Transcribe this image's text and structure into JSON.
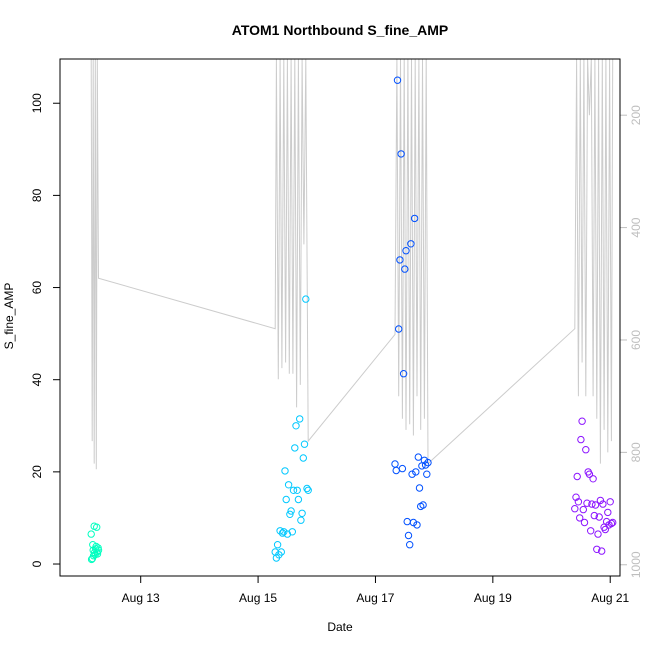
{
  "chart_data": {
    "type": "scatter",
    "title": "ATOM1 Northbound S_fine_AMP",
    "xlabel": "Date",
    "ylabel": "S_fine_AMP",
    "xlim": [
      "2023-08-11T15:00",
      "2023-08-21T04:00"
    ],
    "ylim": [
      -2.6,
      109.6
    ],
    "x_ticks": [
      {
        "x": "2023-08-13T00:00",
        "label": "Aug 13"
      },
      {
        "x": "2023-08-15T00:00",
        "label": "Aug 15"
      },
      {
        "x": "2023-08-17T00:00",
        "label": "Aug 17"
      },
      {
        "x": "2023-08-19T00:00",
        "label": "Aug 19"
      },
      {
        "x": "2023-08-21T00:00",
        "label": "Aug 21"
      }
    ],
    "y_ticks": [
      0,
      20,
      40,
      60,
      80,
      100
    ],
    "secondary_axis": {
      "side": "right",
      "reversed": true,
      "ylim": [
        1020,
        100
      ],
      "ticks": [
        200,
        400,
        600,
        800,
        1000
      ],
      "color": "#bebebe"
    },
    "grid": false,
    "legend": "none",
    "series": [
      {
        "color": "#00ffc0",
        "x": [
          "2023-08-12T03:45",
          "2023-08-12T03:55",
          "2023-08-12T04:15",
          "2023-08-12T04:25",
          "2023-08-12T04:35",
          "2023-08-12T04:45",
          "2023-08-12T05:00",
          "2023-08-12T05:10",
          "2023-08-12T05:20",
          "2023-08-12T05:35",
          "2023-08-12T05:45",
          "2023-08-12T06:00",
          "2023-08-12T06:10",
          "2023-08-12T06:20",
          "2023-08-12T06:35",
          "2023-08-12T06:45"
        ],
        "y": [
          6.5,
          1.0,
          1.2,
          4.2,
          3.0,
          1.8,
          8.2,
          2.5,
          2.0,
          3.3,
          3.8,
          8.0,
          2.6,
          2.2,
          3.5,
          3.0
        ]
      },
      {
        "color": "#00c8ff",
        "x": [
          "2023-08-15T07:00",
          "2023-08-15T07:30",
          "2023-08-15T08:00",
          "2023-08-15T08:30",
          "2023-08-15T09:00",
          "2023-08-15T09:30",
          "2023-08-15T10:00",
          "2023-08-15T10:30",
          "2023-08-15T11:00",
          "2023-08-15T11:30",
          "2023-08-15T12:00",
          "2023-08-15T12:30",
          "2023-08-15T13:00",
          "2023-08-15T13:30",
          "2023-08-15T14:00",
          "2023-08-15T14:30",
          "2023-08-15T15:00",
          "2023-08-15T15:30",
          "2023-08-15T16:00",
          "2023-08-15T16:30",
          "2023-08-15T17:00",
          "2023-08-15T17:30",
          "2023-08-15T18:00",
          "2023-08-15T18:30",
          "2023-08-15T19:00",
          "2023-08-15T19:30",
          "2023-08-15T20:00",
          "2023-08-15T20:30"
        ],
        "y": [
          2.6,
          1.3,
          4.2,
          2.0,
          7.2,
          2.6,
          6.7,
          7.0,
          20.2,
          14.0,
          6.5,
          17.2,
          10.8,
          11.5,
          7.0,
          16.0,
          25.2,
          30.0,
          16.0,
          14.0,
          31.5,
          9.5,
          11.0,
          23.0,
          26.0,
          57.5,
          16.4,
          16.0
        ]
      },
      {
        "color": "#0050ff",
        "x": [
          "2023-08-17T08:00",
          "2023-08-17T08:30",
          "2023-08-17T09:00",
          "2023-08-17T09:30",
          "2023-08-17T10:00",
          "2023-08-17T10:30",
          "2023-08-17T11:00",
          "2023-08-17T11:30",
          "2023-08-17T12:00",
          "2023-08-17T12:30",
          "2023-08-17T13:00",
          "2023-08-17T13:30",
          "2023-08-17T14:00",
          "2023-08-17T14:30",
          "2023-08-17T15:00",
          "2023-08-17T15:30",
          "2023-08-17T16:00",
          "2023-08-17T16:30",
          "2023-08-17T17:00",
          "2023-08-17T17:30",
          "2023-08-17T18:00",
          "2023-08-17T18:30",
          "2023-08-17T19:00",
          "2023-08-17T19:30",
          "2023-08-17T20:00",
          "2023-08-17T20:30",
          "2023-08-17T21:00",
          "2023-08-17T21:30"
        ],
        "y": [
          21.7,
          20.3,
          105.0,
          51.0,
          66.0,
          89.0,
          20.7,
          41.3,
          64.0,
          68.0,
          9.2,
          6.2,
          4.2,
          69.5,
          19.5,
          9.0,
          75.0,
          20.0,
          8.5,
          23.2,
          16.5,
          12.5,
          21.3,
          12.8,
          22.5,
          21.5,
          19.5,
          22.0
        ]
      },
      {
        "color": "#8c14ff",
        "x": [
          "2023-08-20T09:30",
          "2023-08-20T10:00",
          "2023-08-20T10:30",
          "2023-08-20T11:00",
          "2023-08-20T11:30",
          "2023-08-20T12:00",
          "2023-08-20T12:30",
          "2023-08-20T13:00",
          "2023-08-20T13:30",
          "2023-08-20T14:00",
          "2023-08-20T14:30",
          "2023-08-20T15:00",
          "2023-08-20T15:30",
          "2023-08-20T16:00",
          "2023-08-20T16:30",
          "2023-08-20T17:00",
          "2023-08-20T17:30",
          "2023-08-20T18:00",
          "2023-08-20T18:30",
          "2023-08-20T19:00",
          "2023-08-20T19:30",
          "2023-08-20T20:00",
          "2023-08-20T20:30",
          "2023-08-20T21:00",
          "2023-08-20T21:30",
          "2023-08-20T22:00",
          "2023-08-20T22:30",
          "2023-08-20T23:00",
          "2023-08-20T23:30",
          "2023-08-21T00:00",
          "2023-08-21T00:30",
          "2023-08-21T01:00"
        ],
        "y": [
          12.0,
          14.5,
          19.0,
          13.5,
          10.0,
          27.0,
          31.0,
          11.8,
          9.0,
          24.8,
          13.2,
          20.0,
          19.5,
          7.2,
          13.0,
          18.5,
          10.5,
          12.8,
          3.2,
          6.5,
          10.2,
          13.8,
          2.8,
          13.0,
          8.0,
          7.5,
          9.2,
          11.2,
          8.5,
          13.5,
          8.8,
          9.0
        ]
      }
    ],
    "depth_trace": {
      "color": "#cccccc",
      "x": [
        "2023-08-12T03:45",
        "2023-08-12T04:10",
        "2023-08-12T04:35",
        "2023-08-12T05:00",
        "2023-08-12T05:25",
        "2023-08-12T05:50",
        "2023-08-12T06:15",
        "2023-08-12T06:45",
        "2023-08-15T07:00",
        "2023-08-15T07:30",
        "2023-08-15T08:15",
        "2023-08-15T09:00",
        "2023-08-15T09:45",
        "2023-08-15T10:30",
        "2023-08-15T11:15",
        "2023-08-15T12:00",
        "2023-08-15T12:45",
        "2023-08-15T13:30",
        "2023-08-15T14:15",
        "2023-08-15T15:00",
        "2023-08-15T15:45",
        "2023-08-15T16:30",
        "2023-08-15T17:15",
        "2023-08-15T18:00",
        "2023-08-15T18:45",
        "2023-08-15T19:30",
        "2023-08-15T20:30",
        "2023-08-17T08:00",
        "2023-08-17T08:45",
        "2023-08-17T09:30",
        "2023-08-17T10:15",
        "2023-08-17T11:00",
        "2023-08-17T11:45",
        "2023-08-17T12:30",
        "2023-08-17T13:15",
        "2023-08-17T14:00",
        "2023-08-17T14:45",
        "2023-08-17T15:30",
        "2023-08-17T16:15",
        "2023-08-17T17:00",
        "2023-08-17T17:45",
        "2023-08-17T18:30",
        "2023-08-17T19:15",
        "2023-08-17T20:00",
        "2023-08-17T20:45",
        "2023-08-17T21:30",
        "2023-08-20T09:30",
        "2023-08-20T10:15",
        "2023-08-20T11:00",
        "2023-08-20T11:45",
        "2023-08-20T12:30",
        "2023-08-20T13:15",
        "2023-08-20T14:00",
        "2023-08-20T14:45",
        "2023-08-20T15:30",
        "2023-08-20T16:15",
        "2023-08-20T17:00",
        "2023-08-20T17:45",
        "2023-08-20T18:30",
        "2023-08-20T19:15",
        "2023-08-20T20:00",
        "2023-08-20T20:45",
        "2023-08-20T21:30",
        "2023-08-20T22:15",
        "2023-08-20T23:00",
        "2023-08-20T23:45",
        "2023-08-21T00:30",
        "2023-08-21T01:00"
      ],
      "depth": [
        100,
        780,
        100,
        820,
        100,
        830,
        100,
        490,
        580,
        100,
        670,
        100,
        650,
        100,
        640,
        100,
        660,
        100,
        660,
        100,
        720,
        100,
        680,
        100,
        430,
        100,
        780,
        590,
        100,
        700,
        100,
        740,
        100,
        760,
        100,
        750,
        100,
        770,
        100,
        700,
        100,
        760,
        100,
        740,
        100,
        820,
        580,
        100,
        700,
        100,
        640,
        100,
        700,
        100,
        200,
        100,
        700,
        100,
        740,
        100,
        820,
        100,
        760,
        100,
        800,
        100,
        780,
        100
      ]
    }
  }
}
